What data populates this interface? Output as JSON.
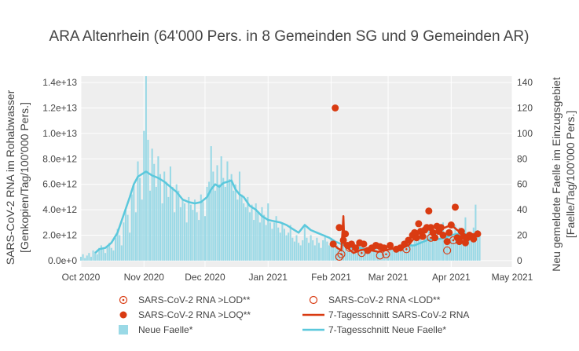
{
  "chart_data": {
    "type": "bar+line+scatter",
    "title": "ARA Altenrhein (64'000 Pers. in 8 Gemeinden SG und 9 Gemeinden AR)",
    "y_left_label_line1": "SARS-CoV-2 RNA im Rohabwasser",
    "y_left_label_line2": "[Genkopien/Tag/100'000 Pers.]",
    "y_right_label_line1": "Neu gemeldete Faelle im Einzugsgebiet",
    "y_right_label_line2": "[Faelle/Tag/100'000 Pers.]",
    "x_ticks": [
      "Oct 2020",
      "Nov 2020",
      "Dec 2020",
      "Jan 2021",
      "Feb 2021",
      "Mar 2021",
      "Apr 2021",
      "May 2021"
    ],
    "x_range_days": [
      0,
      212
    ],
    "x_tick_days": [
      0,
      31,
      61,
      92,
      123,
      151,
      182,
      212
    ],
    "y_left_ticks": [
      "0.0e+0",
      "2.0e+12",
      "4.0e+12",
      "6.0e+12",
      "8.0e+12",
      "1.0e+13",
      "1.2e+13",
      "1.4e+13"
    ],
    "y_left_tick_values": [
      0,
      2000000000000.0,
      4000000000000.0,
      6000000000000.0,
      8000000000000.0,
      10000000000000.0,
      12000000000000.0,
      14000000000000.0
    ],
    "y_left_range": [
      -500000000000.0,
      14500000000000.0
    ],
    "y_right_ticks": [
      "0",
      "20",
      "40",
      "60",
      "80",
      "100",
      "120",
      "140"
    ],
    "y_right_tick_values": [
      0,
      20,
      40,
      60,
      80,
      100,
      120,
      140
    ],
    "y_right_range": [
      -5,
      145
    ],
    "legend": {
      "lod": "SARS-CoV-2 RNA >LOD**",
      "below_lod": "SARS-CoV-2 RNA <LOD**",
      "loq": "SARS-CoV-2 RNA >LOQ**",
      "rna_avg": "7-Tagesschnitt SARS-CoV-2 RNA",
      "cases": "Neue Faelle*",
      "cases_avg": "7-Tagesschnitt Neue Faelle*"
    },
    "colors": {
      "bars": "#9ad9e6",
      "cases_line": "#5bc8dc",
      "rna": "#d93b12",
      "plot_bg": "#eeeeee",
      "grid": "#ffffff"
    },
    "cases_avg_points": [
      [
        7,
        6
      ],
      [
        9,
        9
      ],
      [
        12,
        10
      ],
      [
        15,
        14
      ],
      [
        18,
        22
      ],
      [
        21,
        36
      ],
      [
        24,
        50
      ],
      [
        26,
        60
      ],
      [
        28,
        66
      ],
      [
        30,
        68
      ],
      [
        32,
        70
      ],
      [
        35,
        67
      ],
      [
        38,
        65
      ],
      [
        41,
        62
      ],
      [
        44,
        58
      ],
      [
        47,
        54
      ],
      [
        50,
        48
      ],
      [
        53,
        46
      ],
      [
        56,
        45
      ],
      [
        59,
        46
      ],
      [
        62,
        50
      ],
      [
        64,
        56
      ],
      [
        66,
        60
      ],
      [
        68,
        58
      ],
      [
        70,
        61
      ],
      [
        72,
        62
      ],
      [
        74,
        63
      ],
      [
        76,
        56
      ],
      [
        78,
        52
      ],
      [
        80,
        50
      ],
      [
        83,
        43
      ],
      [
        86,
        40
      ],
      [
        89,
        35
      ],
      [
        92,
        32
      ],
      [
        95,
        31
      ],
      [
        98,
        30
      ],
      [
        101,
        28
      ],
      [
        104,
        25
      ],
      [
        107,
        22
      ],
      [
        110,
        28
      ],
      [
        113,
        24
      ],
      [
        116,
        22
      ],
      [
        119,
        20
      ],
      [
        122,
        18
      ],
      [
        125,
        15
      ],
      [
        128,
        13
      ],
      [
        131,
        11
      ],
      [
        134,
        10
      ],
      [
        137,
        10
      ],
      [
        140,
        9
      ],
      [
        143,
        8
      ],
      [
        146,
        7
      ],
      [
        149,
        8
      ],
      [
        152,
        9
      ],
      [
        155,
        9
      ],
      [
        158,
        11
      ],
      [
        161,
        12
      ],
      [
        164,
        12
      ],
      [
        167,
        14
      ],
      [
        170,
        16
      ],
      [
        173,
        17
      ],
      [
        176,
        17
      ],
      [
        179,
        18
      ],
      [
        182,
        20
      ],
      [
        185,
        21
      ],
      [
        188,
        21
      ],
      [
        191,
        20
      ],
      [
        194,
        19
      ],
      [
        196,
        20
      ]
    ],
    "rna_avg_points": [
      [
        124,
        1300000000000.0
      ],
      [
        126,
        1000000000000.0
      ],
      [
        128,
        800000000000.0
      ],
      [
        129,
        3500000000000.0
      ],
      [
        129.5,
        1200000000000.0
      ],
      [
        131,
        1000000000000.0
      ],
      [
        134,
        600000000000.0
      ],
      [
        137,
        800000000000.0
      ],
      [
        140,
        900000000000.0
      ],
      [
        143,
        800000000000.0
      ],
      [
        146,
        700000000000.0
      ],
      [
        149,
        800000000000.0
      ],
      [
        152,
        900000000000.0
      ],
      [
        155,
        1000000000000.0
      ],
      [
        158,
        1000000000000.0
      ],
      [
        161,
        1200000000000.0
      ],
      [
        164,
        1800000000000.0
      ],
      [
        167,
        2300000000000.0
      ],
      [
        170,
        2700000000000.0
      ],
      [
        173,
        2700000000000.0
      ],
      [
        176,
        2400000000000.0
      ],
      [
        179,
        2600000000000.0
      ],
      [
        182,
        2800000000000.0
      ],
      [
        185,
        2400000000000.0
      ],
      [
        188,
        2000000000000.0
      ],
      [
        191,
        2000000000000.0
      ],
      [
        194,
        2100000000000.0
      ],
      [
        196,
        2200000000000.0
      ]
    ],
    "loq_points": [
      [
        125,
        12000000000000.0
      ],
      [
        127,
        2600000000000.0
      ],
      [
        130,
        2100000000000.0
      ],
      [
        124,
        1300000000000.0
      ],
      [
        129,
        1600000000000.0
      ],
      [
        131,
        1200000000000.0
      ],
      [
        133,
        1300000000000.0
      ],
      [
        135,
        1000000000000.0
      ],
      [
        137,
        1400000000000.0
      ],
      [
        139,
        1300000000000.0
      ],
      [
        141,
        800000000000.0
      ],
      [
        143,
        1000000000000.0
      ],
      [
        145,
        1200000000000.0
      ],
      [
        147,
        1100000000000.0
      ],
      [
        149,
        1000000000000.0
      ],
      [
        152,
        1200000000000.0
      ],
      [
        155,
        900000000000.0
      ],
      [
        157,
        1000000000000.0
      ],
      [
        159,
        1300000000000.0
      ],
      [
        161,
        1600000000000.0
      ],
      [
        163,
        2000000000000.0
      ],
      [
        164,
        2200000000000.0
      ],
      [
        165,
        1800000000000.0
      ],
      [
        166,
        2900000000000.0
      ],
      [
        167,
        2300000000000.0
      ],
      [
        168,
        1900000000000.0
      ],
      [
        169,
        2400000000000.0
      ],
      [
        170,
        2600000000000.0
      ],
      [
        171,
        3900000000000.0
      ],
      [
        172,
        2600000000000.0
      ],
      [
        173,
        2200000000000.0
      ],
      [
        174,
        1800000000000.0
      ],
      [
        175,
        2700000000000.0
      ],
      [
        176,
        2300000000000.0
      ],
      [
        177,
        2600000000000.0
      ],
      [
        178,
        2000000000000.0
      ],
      [
        180,
        1500000000000.0
      ],
      [
        181,
        2200000000000.0
      ],
      [
        182,
        2800000000000.0
      ],
      [
        184,
        4200000000000.0
      ],
      [
        185,
        1800000000000.0
      ],
      [
        186,
        1500000000000.0
      ],
      [
        187,
        2300000000000.0
      ],
      [
        188,
        1900000000000.0
      ],
      [
        189,
        1400000000000.0
      ],
      [
        190,
        1800000000000.0
      ],
      [
        191,
        2000000000000.0
      ],
      [
        192,
        1900000000000.0
      ],
      [
        193,
        1700000000000.0
      ],
      [
        195,
        2100000000000.0
      ]
    ],
    "lod_points": [
      [
        128,
        500000000000.0
      ],
      [
        132,
        1000000000000.0
      ],
      [
        138,
        600000000000.0
      ],
      [
        150,
        500000000000.0
      ],
      [
        160,
        900000000000.0
      ],
      [
        172,
        1800000000000.0
      ],
      [
        183,
        1600000000000.0
      ]
    ],
    "below_lod_points": [
      [
        127,
        300000000000.0
      ],
      [
        147,
        400000000000.0
      ],
      [
        180,
        800000000000.0
      ]
    ],
    "cases_bars": [
      [
        0,
        3
      ],
      [
        1,
        5
      ],
      [
        2,
        2
      ],
      [
        3,
        4
      ],
      [
        4,
        6
      ],
      [
        5,
        3
      ],
      [
        6,
        8
      ],
      [
        7,
        7
      ],
      [
        8,
        5
      ],
      [
        9,
        10
      ],
      [
        10,
        12
      ],
      [
        11,
        9
      ],
      [
        12,
        6
      ],
      [
        13,
        11
      ],
      [
        14,
        14
      ],
      [
        15,
        10
      ],
      [
        16,
        8
      ],
      [
        17,
        18
      ],
      [
        18,
        25
      ],
      [
        19,
        20
      ],
      [
        20,
        12
      ],
      [
        21,
        30
      ],
      [
        22,
        40
      ],
      [
        23,
        36
      ],
      [
        24,
        22
      ],
      [
        25,
        52
      ],
      [
        26,
        60
      ],
      [
        27,
        38
      ],
      [
        28,
        78
      ],
      [
        29,
        65
      ],
      [
        30,
        48
      ],
      [
        31,
        102
      ],
      [
        32,
        145
      ],
      [
        33,
        95
      ],
      [
        34,
        55
      ],
      [
        35,
        88
      ],
      [
        36,
        76
      ],
      [
        37,
        58
      ],
      [
        38,
        82
      ],
      [
        39,
        68
      ],
      [
        40,
        45
      ],
      [
        41,
        70
      ],
      [
        42,
        62
      ],
      [
        43,
        50
      ],
      [
        44,
        74
      ],
      [
        45,
        58
      ],
      [
        46,
        38
      ],
      [
        47,
        60
      ],
      [
        48,
        55
      ],
      [
        49,
        42
      ],
      [
        50,
        48
      ],
      [
        51,
        45
      ],
      [
        52,
        30
      ],
      [
        53,
        50
      ],
      [
        54,
        44
      ],
      [
        55,
        40
      ],
      [
        56,
        48
      ],
      [
        57,
        38
      ],
      [
        58,
        32
      ],
      [
        59,
        52
      ],
      [
        60,
        46
      ],
      [
        61,
        35
      ],
      [
        62,
        58
      ],
      [
        63,
        62
      ],
      [
        64,
        90
      ],
      [
        65,
        70
      ],
      [
        66,
        55
      ],
      [
        67,
        75
      ],
      [
        68,
        60
      ],
      [
        69,
        82
      ],
      [
        70,
        65
      ],
      [
        71,
        58
      ],
      [
        72,
        78
      ],
      [
        73,
        64
      ],
      [
        74,
        68
      ],
      [
        75,
        55
      ],
      [
        76,
        60
      ],
      [
        77,
        48
      ],
      [
        78,
        70
      ],
      [
        79,
        52
      ],
      [
        80,
        45
      ],
      [
        81,
        42
      ],
      [
        82,
        50
      ],
      [
        83,
        38
      ],
      [
        84,
        44
      ],
      [
        85,
        32
      ],
      [
        86,
        45
      ],
      [
        87,
        38
      ],
      [
        88,
        30
      ],
      [
        89,
        42
      ],
      [
        90,
        36
      ],
      [
        91,
        28
      ],
      [
        92,
        45
      ],
      [
        93,
        30
      ],
      [
        94,
        25
      ],
      [
        95,
        30
      ],
      [
        96,
        35
      ],
      [
        97,
        26
      ],
      [
        98,
        22
      ],
      [
        99,
        30
      ],
      [
        100,
        25
      ],
      [
        101,
        20
      ],
      [
        102,
        22
      ],
      [
        103,
        28
      ],
      [
        104,
        18
      ],
      [
        105,
        15
      ],
      [
        106,
        20
      ],
      [
        107,
        14
      ],
      [
        108,
        12
      ],
      [
        109,
        16
      ],
      [
        110,
        28
      ],
      [
        111,
        18
      ],
      [
        112,
        14
      ],
      [
        113,
        20
      ],
      [
        114,
        16
      ],
      [
        115,
        12
      ],
      [
        116,
        18
      ],
      [
        117,
        14
      ],
      [
        118,
        10
      ],
      [
        119,
        16
      ],
      [
        120,
        20
      ],
      [
        121,
        15
      ],
      [
        122,
        12
      ],
      [
        123,
        18
      ],
      [
        124,
        14
      ],
      [
        125,
        10
      ],
      [
        126,
        12
      ],
      [
        127,
        9
      ],
      [
        128,
        8
      ],
      [
        129,
        14
      ],
      [
        130,
        10
      ],
      [
        131,
        7
      ],
      [
        132,
        9
      ],
      [
        133,
        12
      ],
      [
        134,
        8
      ],
      [
        135,
        6
      ],
      [
        136,
        10
      ],
      [
        137,
        12
      ],
      [
        138,
        8
      ],
      [
        139,
        10
      ],
      [
        140,
        9
      ],
      [
        141,
        7
      ],
      [
        142,
        11
      ],
      [
        143,
        10
      ],
      [
        144,
        8
      ],
      [
        145,
        12
      ],
      [
        146,
        6
      ],
      [
        147,
        9
      ],
      [
        148,
        8
      ],
      [
        149,
        10
      ],
      [
        150,
        7
      ],
      [
        151,
        9
      ],
      [
        152,
        12
      ],
      [
        153,
        8
      ],
      [
        154,
        10
      ],
      [
        155,
        11
      ],
      [
        156,
        9
      ],
      [
        157,
        12
      ],
      [
        158,
        14
      ],
      [
        159,
        10
      ],
      [
        160,
        12
      ],
      [
        161,
        16
      ],
      [
        162,
        14
      ],
      [
        163,
        12
      ],
      [
        164,
        18
      ],
      [
        165,
        20
      ],
      [
        166,
        16
      ],
      [
        167,
        22
      ],
      [
        168,
        14
      ],
      [
        169,
        18
      ],
      [
        170,
        20
      ],
      [
        171,
        26
      ],
      [
        172,
        18
      ],
      [
        173,
        16
      ],
      [
        174,
        22
      ],
      [
        175,
        24
      ],
      [
        176,
        18
      ],
      [
        177,
        20
      ],
      [
        178,
        30
      ],
      [
        179,
        16
      ],
      [
        180,
        22
      ],
      [
        181,
        20
      ],
      [
        182,
        24
      ],
      [
        183,
        18
      ],
      [
        184,
        28
      ],
      [
        185,
        22
      ],
      [
        186,
        26
      ],
      [
        187,
        18
      ],
      [
        188,
        24
      ],
      [
        189,
        34
      ],
      [
        190,
        20
      ],
      [
        191,
        22
      ],
      [
        192,
        18
      ],
      [
        193,
        26
      ],
      [
        194,
        44
      ],
      [
        195,
        24
      ],
      [
        196,
        20
      ]
    ]
  }
}
